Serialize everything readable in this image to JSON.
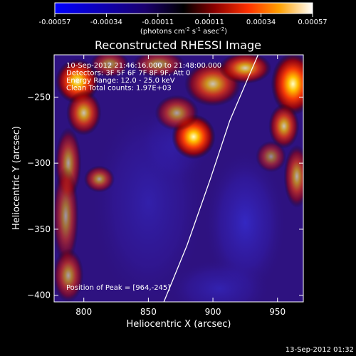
{
  "chart_data": {
    "type": "heatmap",
    "title": "Reconstructed RHESSI Image",
    "xlabel": "Heliocentric X (arcsec)",
    "ylabel": "Heliocentric Y (arcsec)",
    "xlim": [
      777,
      970
    ],
    "ylim": [
      -405,
      -218
    ],
    "x_ticks": [
      800,
      850,
      900,
      950
    ],
    "y_ticks": [
      -250,
      -300,
      -350,
      -400
    ],
    "colorbar": {
      "ticks": [
        "-0.00057",
        "-0.00034",
        "-0.00011",
        "0.00011",
        "0.00034",
        "0.00057"
      ],
      "range": [
        -0.00057,
        0.00057
      ],
      "label_pre": "(photons cm",
      "label_sup1": "-2",
      "label_mid1": " s",
      "label_sup2": "-1",
      "label_mid2": " asec",
      "label_sup3": "-2",
      "label_post": ")"
    },
    "annotations": [
      "10-Sep-2012 21:46:16.000 to 21:48:00.000",
      "Detectors: 3F 5F 6F 7F 8F 9F, Att 0",
      "Energy Range: 12.0 - 25.0 keV",
      "Clean    Total counts: 1.97E+03"
    ],
    "peak_label": "Position of Peak = [964,-245]",
    "limb_curve": [
      [
        862,
        -405
      ],
      [
        880,
        -362
      ],
      [
        898,
        -312
      ],
      [
        913,
        -268
      ],
      [
        927,
        -236
      ],
      [
        935,
        -218
      ]
    ],
    "hot_regions": [
      {
        "x": 795,
        "y": -238,
        "sx": 10,
        "sy": 10,
        "a": 0.95
      },
      {
        "x": 800,
        "y": -262,
        "sx": 8,
        "sy": 10,
        "a": 0.75
      },
      {
        "x": 788,
        "y": -300,
        "sx": 6,
        "sy": 16,
        "a": 0.6
      },
      {
        "x": 812,
        "y": -312,
        "sx": 7,
        "sy": 6,
        "a": 0.6
      },
      {
        "x": 786,
        "y": -340,
        "sx": 6,
        "sy": 22,
        "a": 0.55
      },
      {
        "x": 788,
        "y": -385,
        "sx": 7,
        "sy": 12,
        "a": 0.6
      },
      {
        "x": 820,
        "y": -225,
        "sx": 9,
        "sy": 6,
        "a": 0.55
      },
      {
        "x": 858,
        "y": -225,
        "sx": 12,
        "sy": 6,
        "a": 0.55
      },
      {
        "x": 885,
        "y": -280,
        "sx": 10,
        "sy": 10,
        "a": 1.0
      },
      {
        "x": 872,
        "y": -262,
        "sx": 10,
        "sy": 8,
        "a": 0.6
      },
      {
        "x": 900,
        "y": -240,
        "sx": 13,
        "sy": 10,
        "a": 0.75
      },
      {
        "x": 925,
        "y": -228,
        "sx": 12,
        "sy": 7,
        "a": 0.8
      },
      {
        "x": 962,
        "y": -240,
        "sx": 10,
        "sy": 14,
        "a": 1.0
      },
      {
        "x": 955,
        "y": -272,
        "sx": 7,
        "sy": 10,
        "a": 0.75
      },
      {
        "x": 945,
        "y": -295,
        "sx": 7,
        "sy": 7,
        "a": 0.5
      },
      {
        "x": 965,
        "y": -310,
        "sx": 6,
        "sy": 14,
        "a": 0.65
      }
    ],
    "cool_regions": [
      {
        "x": 850,
        "y": -330,
        "sx": 28,
        "sy": 50,
        "a": 0.35
      },
      {
        "x": 925,
        "y": -345,
        "sx": 20,
        "sy": 35,
        "a": 0.55
      },
      {
        "x": 905,
        "y": -395,
        "sx": 25,
        "sy": 14,
        "a": 0.4
      },
      {
        "x": 870,
        "y": -285,
        "sx": 18,
        "sy": 20,
        "a": 0.25
      }
    ]
  },
  "footer": {
    "timestamp": "13-Sep-2012 01:32"
  }
}
